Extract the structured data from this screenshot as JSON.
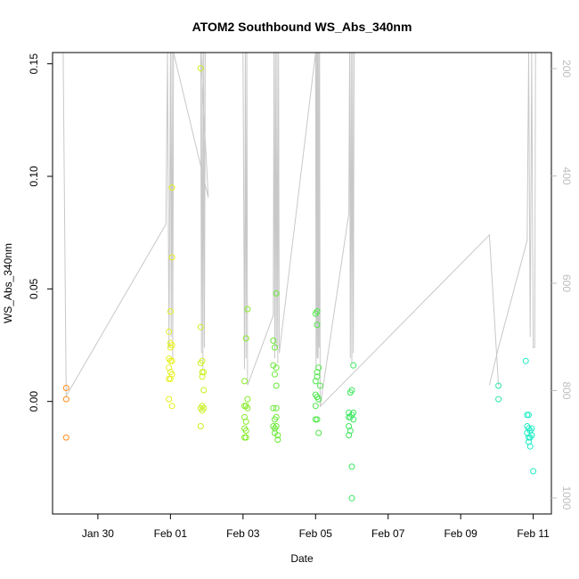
{
  "chart_data": {
    "type": "scatter",
    "title": "ATOM2 Southbound WS_Abs_340nm",
    "xlabel": "Date",
    "ylabel": "WS_Abs_340nm",
    "x_ticks": [
      "Jan 30",
      "Feb 01",
      "Feb 03",
      "Feb 05",
      "Feb 07",
      "Feb 09",
      "Feb 11"
    ],
    "y_ticks": [
      "0.00",
      "0.05",
      "0.10",
      "0.15"
    ],
    "y2_ticks": [
      "200",
      "400",
      "600",
      "800",
      "1000"
    ],
    "xlim": [
      "2016-01-28 18:00",
      "2016-02-11 12:00"
    ],
    "ylim": [
      -0.05,
      0.155
    ],
    "y2lim": [
      1030,
      170
    ],
    "grid": false,
    "series": [
      {
        "color": "#ff8c1a",
        "points": [
          [
            "2016-01-29 03:00",
            0.006
          ],
          [
            "2016-01-29 03:00",
            0.001
          ],
          [
            "2016-01-29 03:00",
            -0.016
          ]
        ]
      },
      {
        "color": "#e6f01e",
        "points": [
          [
            "2016-01-31 23:00",
            0.031
          ],
          [
            "2016-01-31 23:00",
            0.019
          ],
          [
            "2016-01-31 23:00",
            0.015
          ],
          [
            "2016-01-31 23:00",
            0.01
          ],
          [
            "2016-01-31 23:00",
            0.001
          ],
          [
            "2016-02-01 00:00",
            0.04
          ],
          [
            "2016-02-01 00:00",
            0.026
          ],
          [
            "2016-02-01 00:00",
            0.024
          ],
          [
            "2016-02-01 00:00",
            0.018
          ],
          [
            "2016-02-01 00:00",
            0.013
          ],
          [
            "2016-02-01 00:00",
            0.01
          ],
          [
            "2016-02-01 01:00",
            0.064
          ],
          [
            "2016-02-01 01:00",
            0.095
          ],
          [
            "2016-02-01 01:00",
            0.025
          ],
          [
            "2016-02-01 01:00",
            0.018
          ],
          [
            "2016-02-01 01:00",
            0.012
          ],
          [
            "2016-02-01 01:00",
            -0.002
          ]
        ]
      },
      {
        "color": "#c8f020",
        "points": [
          [
            "2016-02-01 20:00",
            0.148
          ],
          [
            "2016-02-01 20:00",
            0.033
          ],
          [
            "2016-02-01 20:00",
            0.017
          ],
          [
            "2016-02-01 20:00",
            -0.003
          ],
          [
            "2016-02-01 20:00",
            -0.011
          ],
          [
            "2016-02-01 21:00",
            0.018
          ],
          [
            "2016-02-01 21:00",
            0.013
          ],
          [
            "2016-02-01 21:00",
            0.011
          ],
          [
            "2016-02-01 21:00",
            -0.002
          ],
          [
            "2016-02-01 21:00",
            -0.004
          ],
          [
            "2016-02-01 22:00",
            0.013
          ],
          [
            "2016-02-01 22:00",
            0.005
          ],
          [
            "2016-02-01 22:00",
            -0.003
          ]
        ]
      },
      {
        "color": "#86ec2a",
        "points": [
          [
            "2016-02-03 01:00",
            0.009
          ],
          [
            "2016-02-03 01:00",
            -0.002
          ],
          [
            "2016-02-03 01:00",
            -0.007
          ],
          [
            "2016-02-03 01:00",
            -0.012
          ],
          [
            "2016-02-03 01:00",
            -0.016
          ],
          [
            "2016-02-03 02:00",
            0.028
          ],
          [
            "2016-02-03 02:00",
            -0.002
          ],
          [
            "2016-02-03 02:00",
            -0.009
          ],
          [
            "2016-02-03 02:00",
            -0.013
          ],
          [
            "2016-02-03 02:00",
            -0.016
          ],
          [
            "2016-02-03 03:00",
            0.041
          ],
          [
            "2016-02-03 03:00",
            0.001
          ],
          [
            "2016-02-03 03:00",
            -0.003
          ]
        ]
      },
      {
        "color": "#6ae838",
        "points": [
          [
            "2016-02-03 20:00",
            0.027
          ],
          [
            "2016-02-03 20:00",
            0.016
          ],
          [
            "2016-02-03 20:00",
            -0.003
          ],
          [
            "2016-02-03 20:00",
            -0.011
          ],
          [
            "2016-02-03 21:00",
            0.024
          ],
          [
            "2016-02-03 21:00",
            0.012
          ],
          [
            "2016-02-03 21:00",
            -0.008
          ],
          [
            "2016-02-03 21:00",
            -0.012
          ],
          [
            "2016-02-03 21:00",
            -0.014
          ],
          [
            "2016-02-03 22:00",
            0.048
          ],
          [
            "2016-02-03 22:00",
            0.015
          ],
          [
            "2016-02-03 22:00",
            0.007
          ],
          [
            "2016-02-03 22:00",
            -0.003
          ],
          [
            "2016-02-03 22:00",
            -0.007
          ],
          [
            "2016-02-03 22:00",
            -0.011
          ],
          [
            "2016-02-03 23:00",
            -0.015
          ],
          [
            "2016-02-03 23:00",
            -0.017
          ]
        ]
      },
      {
        "color": "#4ee84a",
        "points": [
          [
            "2016-02-05 00:00",
            0.039
          ],
          [
            "2016-02-05 00:00",
            0.009
          ],
          [
            "2016-02-05 00:00",
            0.003
          ],
          [
            "2016-02-05 00:00",
            -0.002
          ],
          [
            "2016-02-05 00:00",
            -0.008
          ],
          [
            "2016-02-05 01:00",
            0.04
          ],
          [
            "2016-02-05 01:00",
            0.034
          ],
          [
            "2016-02-05 01:00",
            0.013
          ],
          [
            "2016-02-05 01:00",
            0.011
          ],
          [
            "2016-02-05 01:00",
            0.002
          ],
          [
            "2016-02-05 01:00",
            -0.008
          ],
          [
            "2016-02-05 02:00",
            0.015
          ],
          [
            "2016-02-05 02:00",
            0.001
          ],
          [
            "2016-02-05 02:00",
            -0.014
          ],
          [
            "2016-02-05 03:00",
            0.007
          ]
        ]
      },
      {
        "color": "#3ce660",
        "points": [
          [
            "2016-02-05 22:00",
            -0.005
          ],
          [
            "2016-02-05 22:00",
            -0.007
          ],
          [
            "2016-02-05 22:00",
            -0.011
          ],
          [
            "2016-02-05 22:00",
            -0.015
          ],
          [
            "2016-02-05 23:00",
            0.004
          ],
          [
            "2016-02-05 23:00",
            -0.007
          ],
          [
            "2016-02-05 23:00",
            -0.013
          ],
          [
            "2016-02-06 00:00",
            0.005
          ],
          [
            "2016-02-06 00:00",
            -0.006
          ],
          [
            "2016-02-06 00:00",
            -0.029
          ],
          [
            "2016-02-06 00:00",
            -0.043
          ],
          [
            "2016-02-06 01:00",
            0.016
          ],
          [
            "2016-02-06 01:00",
            -0.005
          ],
          [
            "2016-02-06 01:00",
            -0.008
          ]
        ]
      },
      {
        "color": "#2ee8a6",
        "points": [
          [
            "2016-02-10 01:00",
            0.007
          ],
          [
            "2016-02-10 01:00",
            0.001
          ]
        ]
      },
      {
        "color": "#1eecc6",
        "points": [
          [
            "2016-02-10 19:00",
            0.018
          ],
          [
            "2016-02-10 20:00",
            -0.006
          ],
          [
            "2016-02-10 20:00",
            -0.011
          ],
          [
            "2016-02-10 20:00",
            -0.014
          ],
          [
            "2016-02-10 21:00",
            -0.006
          ],
          [
            "2016-02-10 21:00",
            -0.012
          ],
          [
            "2016-02-10 21:00",
            -0.016
          ],
          [
            "2016-02-10 21:00",
            -0.018
          ],
          [
            "2016-02-10 22:00",
            -0.013
          ],
          [
            "2016-02-10 22:00",
            -0.016
          ],
          [
            "2016-02-10 22:00",
            -0.02
          ],
          [
            "2016-02-10 23:00",
            -0.012
          ],
          [
            "2016-02-10 23:00",
            -0.015
          ],
          [
            "2016-02-11 00:00",
            -0.031
          ]
        ]
      }
    ],
    "pressure_trace": {
      "color": "#c8c8c8",
      "points": [
        [
          "2016-01-29 01:00",
          170
        ],
        [
          "2016-01-29 03:00",
          810
        ],
        [
          "2016-01-31 21:00",
          490
        ],
        [
          "2016-01-31 22:00",
          170
        ],
        [
          "2016-01-31 23:00",
          720
        ],
        [
          "2016-02-01 00:00",
          170
        ],
        [
          "2016-02-01 00:30",
          700
        ],
        [
          "2016-02-01 01:00",
          170
        ],
        [
          "2016-02-01 01:30",
          740
        ],
        [
          "2016-02-01 02:00",
          170
        ],
        [
          "2016-02-02 01:00",
          440
        ],
        [
          "2016-02-01 20:00",
          170
        ],
        [
          "2016-02-01 20:30",
          730
        ],
        [
          "2016-02-01 21:00",
          170
        ],
        [
          "2016-02-01 21:30",
          760
        ],
        [
          "2016-02-01 22:00",
          170
        ],
        [
          "2016-02-01 22:30",
          720
        ],
        [
          "2016-02-01 23:00",
          170
        ],
        [
          "2016-02-03 00:00",
          170
        ],
        [
          "2016-02-03 01:00",
          760
        ],
        [
          "2016-02-03 01:30",
          170
        ],
        [
          "2016-02-03 02:00",
          740
        ],
        [
          "2016-02-03 02:30",
          170
        ],
        [
          "2016-02-03 03:00",
          790
        ],
        [
          "2016-02-03 20:00",
          660
        ],
        [
          "2016-02-03 20:30",
          170
        ],
        [
          "2016-02-03 21:00",
          740
        ],
        [
          "2016-02-03 21:30",
          170
        ],
        [
          "2016-02-03 22:00",
          720
        ],
        [
          "2016-02-03 22:30",
          170
        ],
        [
          "2016-02-03 23:00",
          750
        ],
        [
          "2016-02-03 23:30",
          170
        ],
        [
          "2016-02-04 00:00",
          730
        ],
        [
          "2016-02-05 00:00",
          170
        ],
        [
          "2016-02-05 00:20",
          760
        ],
        [
          "2016-02-05 00:40",
          170
        ],
        [
          "2016-02-05 01:00",
          740
        ],
        [
          "2016-02-05 01:20",
          170
        ],
        [
          "2016-02-05 01:40",
          740
        ],
        [
          "2016-02-05 02:00",
          170
        ],
        [
          "2016-02-05 02:20",
          720
        ],
        [
          "2016-02-05 02:40",
          170
        ],
        [
          "2016-02-05 03:00",
          830
        ],
        [
          "2016-02-05 22:00",
          470
        ],
        [
          "2016-02-05 22:30",
          170
        ],
        [
          "2016-02-05 23:00",
          740
        ],
        [
          "2016-02-05 23:30",
          170
        ],
        [
          "2016-02-06 00:00",
          750
        ],
        [
          "2016-02-06 00:30",
          170
        ],
        [
          "2016-02-06 01:00",
          730
        ],
        [
          "2016-02-06 01:30",
          170
        ]
      ],
      "extra_segments": [
        [
          [
            "2016-02-09 19:00",
            790
          ],
          [
            "2016-02-10 01:00",
            720
          ],
          [
            "2016-02-10 20:00",
            520
          ],
          [
            "2016-02-10 21:00",
            170
          ],
          [
            "2016-02-10 22:00",
            700
          ],
          [
            "2016-02-10 23:00",
            170
          ],
          [
            "2016-02-11 00:00",
            720
          ],
          [
            "2016-02-11 01:00",
            720
          ],
          [
            "2016-02-11 01:30",
            170
          ]
        ],
        [
          [
            "2016-02-05 03:00",
            830
          ],
          [
            "2016-02-09 19:00",
            510
          ],
          [
            "2016-02-10 01:00",
            790
          ]
        ]
      ]
    }
  }
}
